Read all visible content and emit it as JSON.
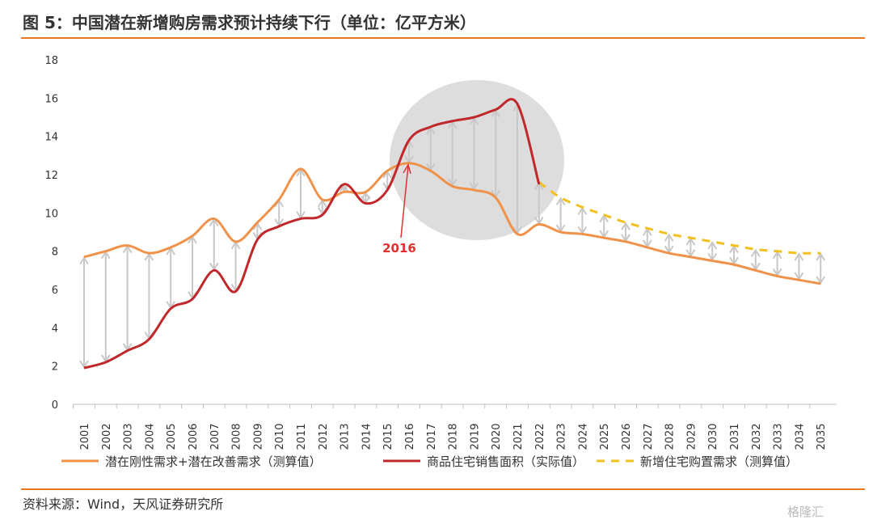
{
  "title": "图 5：中国潜在新增购房需求预计持续下行（单位：亿平方米）",
  "source": "资料来源：Wind，天风证券研究所",
  "watermark": "格隆汇",
  "chart_data": {
    "type": "line",
    "x": [
      "2001",
      "2002",
      "2003",
      "2004",
      "2005",
      "2006",
      "2007",
      "2008",
      "2009",
      "2010",
      "2011",
      "2012",
      "2013",
      "2014",
      "2015",
      "2016",
      "2017",
      "2018",
      "2019",
      "2020",
      "2021",
      "2022",
      "2023",
      "2024",
      "2025",
      "2026",
      "2027",
      "2028",
      "2029",
      "2030",
      "2031",
      "2032",
      "2033",
      "2034",
      "2035"
    ],
    "ylim": [
      0,
      18
    ],
    "yticks": [
      0,
      2,
      4,
      6,
      8,
      10,
      12,
      14,
      16,
      18
    ],
    "series": [
      {
        "name": "潜在刚性需求+潜在改善需求（测算值）",
        "color": "#f0924a",
        "style": "solid",
        "values": [
          7.7,
          8.0,
          8.3,
          7.9,
          8.2,
          8.8,
          9.7,
          8.5,
          9.5,
          10.7,
          12.3,
          10.7,
          11.1,
          11.1,
          12.2,
          12.6,
          12.2,
          11.4,
          11.2,
          10.8,
          8.9,
          9.4,
          9.0,
          8.9,
          8.7,
          8.5,
          8.2,
          7.9,
          7.7,
          7.5,
          7.3,
          7.0,
          6.7,
          6.5,
          6.3
        ]
      },
      {
        "name": "商品住宅销售面积（实际值）",
        "color": "#c0282b",
        "style": "solid",
        "values": [
          1.9,
          2.2,
          2.8,
          3.4,
          5.0,
          5.5,
          7.0,
          5.9,
          8.6,
          9.3,
          9.7,
          9.9,
          11.5,
          10.5,
          11.2,
          13.8,
          14.5,
          14.8,
          15.0,
          15.4,
          15.7,
          11.5,
          null,
          null,
          null,
          null,
          null,
          null,
          null,
          null,
          null,
          null,
          null,
          null,
          null
        ]
      },
      {
        "name": "新增住宅购置需求（测算值）",
        "color": "#f2c01f",
        "style": "dashed",
        "values": [
          null,
          null,
          null,
          null,
          null,
          null,
          null,
          null,
          null,
          null,
          null,
          null,
          null,
          null,
          null,
          null,
          null,
          null,
          null,
          null,
          null,
          11.6,
          10.8,
          10.3,
          9.9,
          9.5,
          9.2,
          8.9,
          8.7,
          8.5,
          8.3,
          8.1,
          8.0,
          7.9,
          7.9
        ]
      }
    ],
    "annotations": [
      {
        "text": "2016",
        "x": "2016",
        "color": "#e03030"
      }
    ],
    "legend_position": "bottom",
    "grid": false
  }
}
